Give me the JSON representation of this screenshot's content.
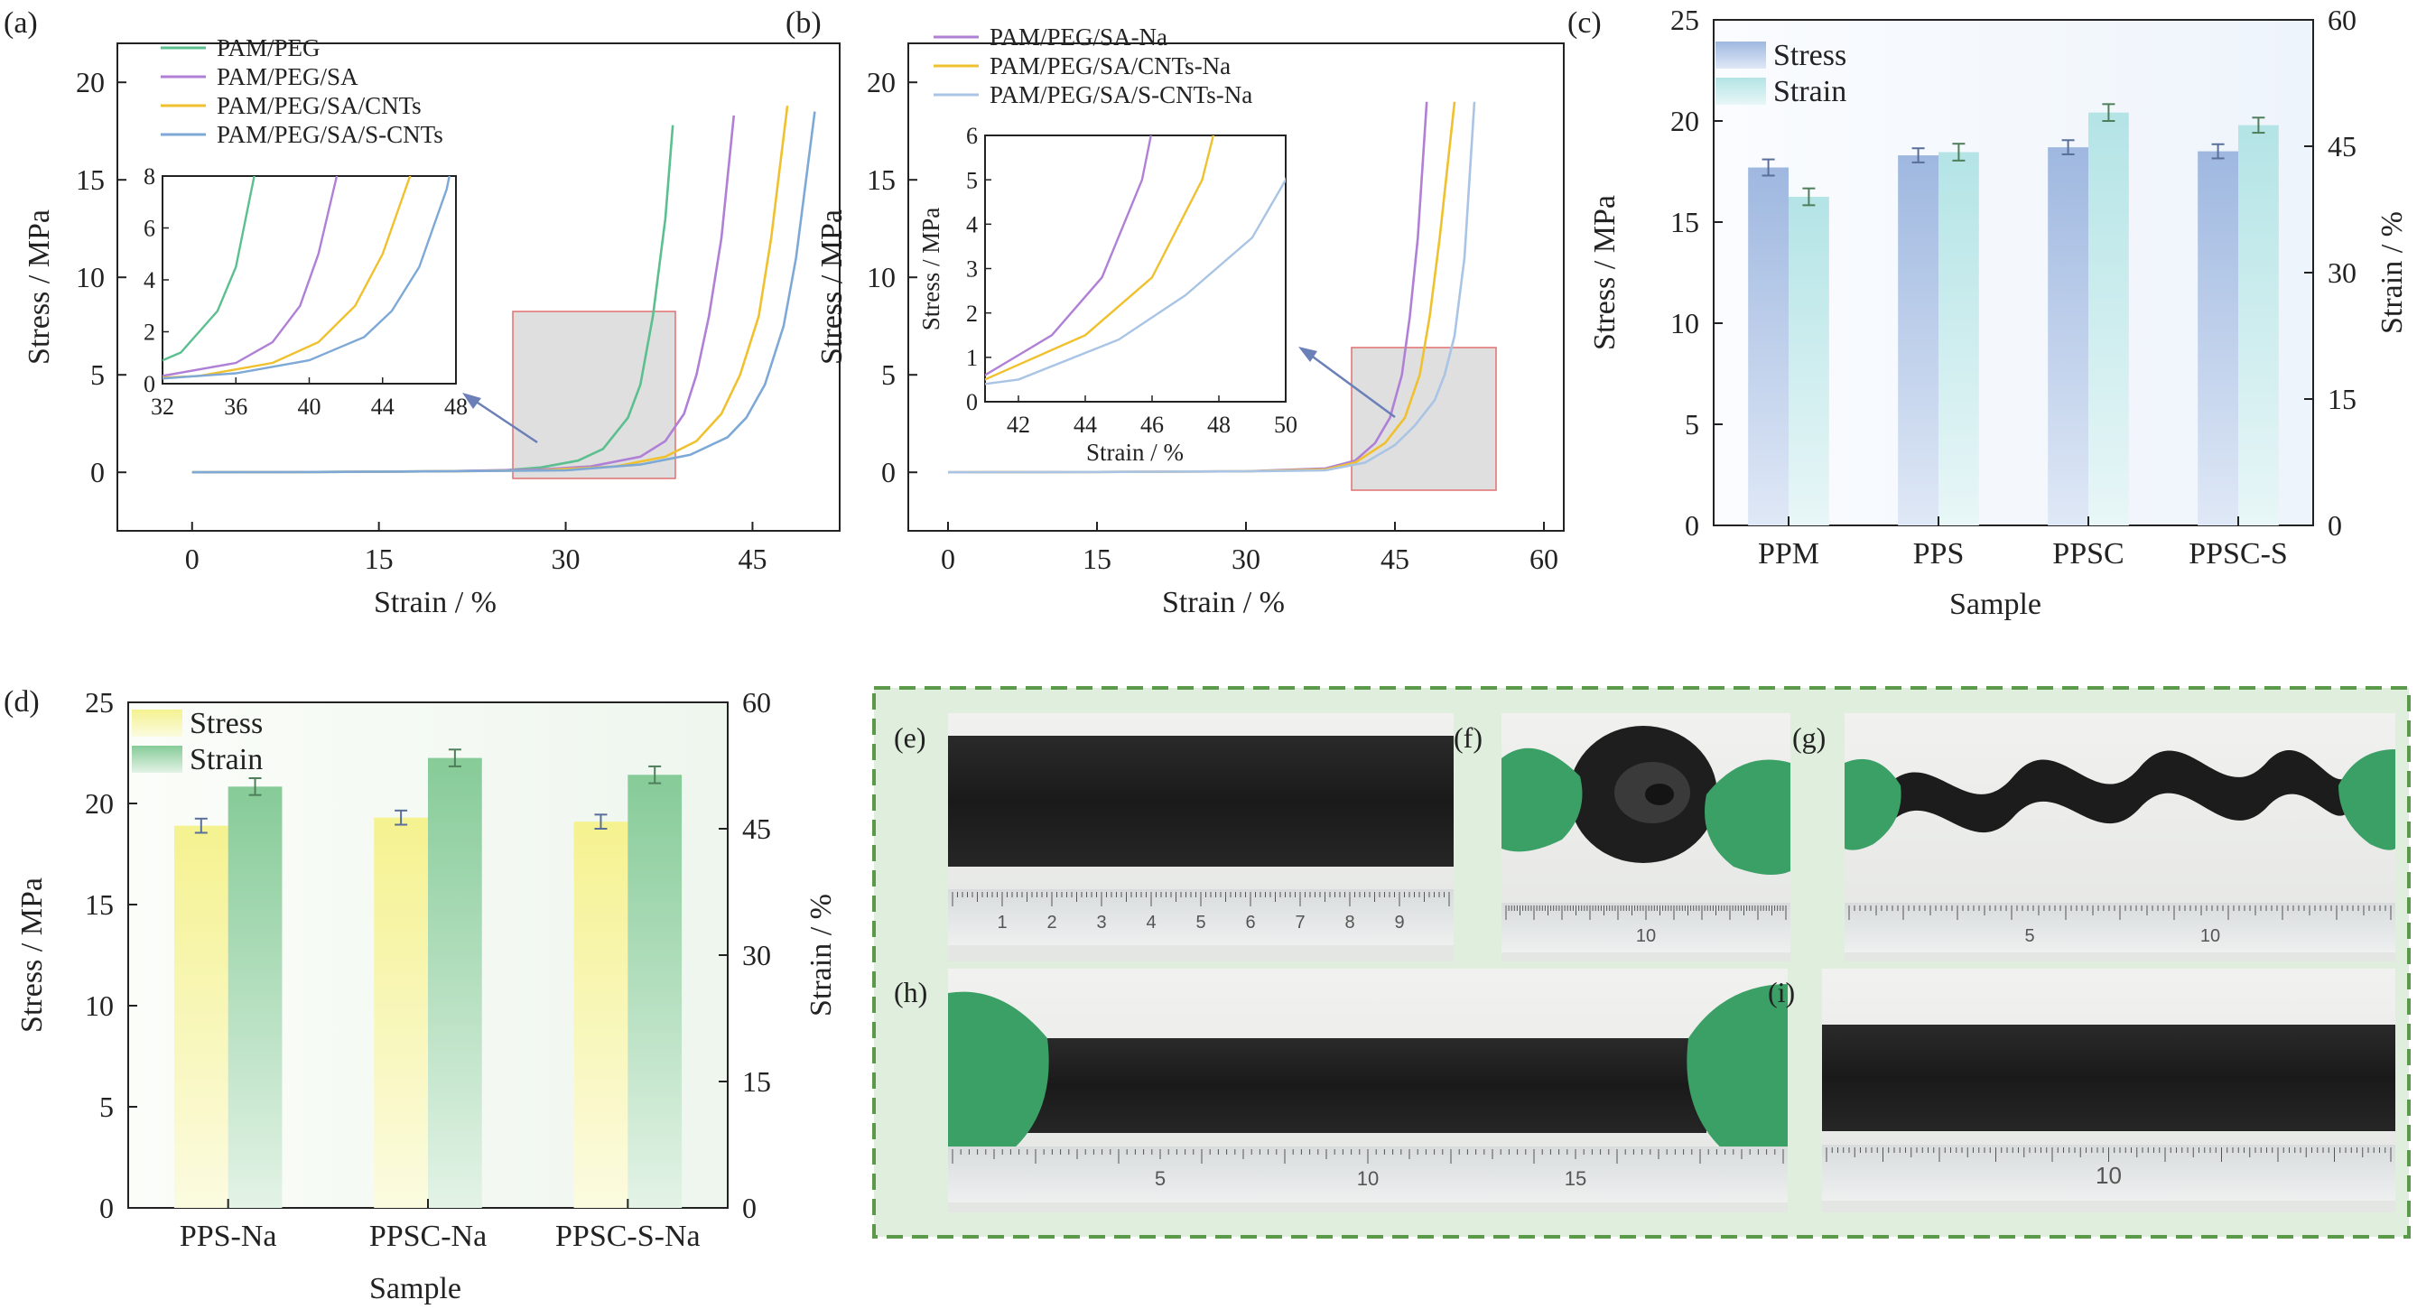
{
  "figure": {
    "panel_labels": [
      "(a)",
      "(b)",
      "(c)",
      "(d)",
      "(e)",
      "(f)",
      "(g)",
      "(h)",
      "(i)"
    ]
  },
  "chart_data": [
    {
      "id": "a",
      "type": "line",
      "xlabel": "Strain / %",
      "ylabel": "Stress / MPa",
      "xlim": [
        -6,
        52
      ],
      "ylim": [
        -3,
        22
      ],
      "xticks": [
        0,
        15,
        30,
        45
      ],
      "yticks": [
        0,
        5,
        10,
        15,
        20
      ],
      "legend": "top-left",
      "series": [
        {
          "name": "PAM/PEG",
          "color": "#5cbf8f",
          "points": [
            [
              0,
              0
            ],
            [
              10,
              0.02
            ],
            [
              20,
              0.05
            ],
            [
              25,
              0.1
            ],
            [
              28,
              0.25
            ],
            [
              31,
              0.6
            ],
            [
              33,
              1.2
            ],
            [
              35,
              2.8
            ],
            [
              36,
              4.5
            ],
            [
              37,
              8
            ],
            [
              38,
              13
            ],
            [
              38.6,
              17.8
            ]
          ]
        },
        {
          "name": "PAM/PEG/SA",
          "color": "#b07fd6",
          "points": [
            [
              0,
              0
            ],
            [
              10,
              0.02
            ],
            [
              20,
              0.05
            ],
            [
              28,
              0.15
            ],
            [
              32,
              0.3
            ],
            [
              36,
              0.8
            ],
            [
              38,
              1.6
            ],
            [
              39.5,
              3
            ],
            [
              40.5,
              5
            ],
            [
              41.5,
              8
            ],
            [
              42.5,
              12
            ],
            [
              43.5,
              18.3
            ]
          ]
        },
        {
          "name": "PAM/PEG/SA/CNTs",
          "color": "#f0c12e",
          "points": [
            [
              0,
              0
            ],
            [
              10,
              0.02
            ],
            [
              20,
              0.05
            ],
            [
              28,
              0.1
            ],
            [
              34,
              0.3
            ],
            [
              38,
              0.8
            ],
            [
              40.5,
              1.6
            ],
            [
              42.5,
              3
            ],
            [
              44,
              5
            ],
            [
              45.5,
              8
            ],
            [
              46.5,
              12
            ],
            [
              47.8,
              18.8
            ]
          ]
        },
        {
          "name": "PAM/PEG/SA/S-CNTs",
          "color": "#7ea9d6",
          "points": [
            [
              0,
              0
            ],
            [
              10,
              0.02
            ],
            [
              20,
              0.05
            ],
            [
              30,
              0.1
            ],
            [
              36,
              0.4
            ],
            [
              40,
              0.9
            ],
            [
              43,
              1.8
            ],
            [
              44.5,
              2.8
            ],
            [
              46,
              4.5
            ],
            [
              47.5,
              7.5
            ],
            [
              48.5,
              11
            ],
            [
              50,
              18.5
            ]
          ]
        }
      ],
      "inset": {
        "xlim": [
          32,
          48
        ],
        "ylim": [
          0,
          8
        ],
        "xticks": [
          32,
          36,
          40,
          44,
          48
        ],
        "yticks": [
          0,
          2,
          4,
          6,
          8
        ]
      }
    },
    {
      "id": "b",
      "type": "line",
      "xlabel": "Strain / %",
      "ylabel": "Stress / MPa",
      "xlim": [
        -4,
        62
      ],
      "ylim": [
        -3,
        22
      ],
      "xticks": [
        0,
        15,
        30,
        45,
        60
      ],
      "yticks": [
        0,
        5,
        10,
        15,
        20
      ],
      "legend": "top-left",
      "series": [
        {
          "name": "PAM/PEG/SA-Na",
          "color": "#b07fd6",
          "points": [
            [
              0,
              0
            ],
            [
              15,
              0.02
            ],
            [
              30,
              0.05
            ],
            [
              38,
              0.2
            ],
            [
              41,
              0.6
            ],
            [
              43,
              1.5
            ],
            [
              44.5,
              2.8
            ],
            [
              45.7,
              5
            ],
            [
              46.5,
              8
            ],
            [
              47.3,
              12
            ],
            [
              48.2,
              19
            ]
          ]
        },
        {
          "name": "PAM/PEG/SA/CNTs-Na",
          "color": "#f0c12e",
          "points": [
            [
              0,
              0
            ],
            [
              15,
              0.02
            ],
            [
              30,
              0.05
            ],
            [
              38,
              0.15
            ],
            [
              41,
              0.5
            ],
            [
              44,
              1.5
            ],
            [
              46,
              2.8
            ],
            [
              47.5,
              5
            ],
            [
              48.5,
              8
            ],
            [
              49.5,
              12
            ],
            [
              51,
              19
            ]
          ]
        },
        {
          "name": "PAM/PEG/SA/S-CNTs-Na",
          "color": "#a9c4e4",
          "points": [
            [
              0,
              0
            ],
            [
              15,
              0.02
            ],
            [
              30,
              0.05
            ],
            [
              38,
              0.1
            ],
            [
              42,
              0.5
            ],
            [
              45,
              1.4
            ],
            [
              47,
              2.4
            ],
            [
              49,
              3.7
            ],
            [
              50,
              5
            ],
            [
              51,
              7
            ],
            [
              52,
              11
            ],
            [
              53,
              19
            ]
          ]
        }
      ],
      "inset": {
        "xlim": [
          41,
          50
        ],
        "ylim": [
          0,
          6
        ],
        "xticks": [
          42,
          44,
          46,
          48,
          50
        ],
        "yticks": [
          0,
          1,
          2,
          3,
          4,
          5,
          6
        ],
        "xlabel": "Strain / %",
        "ylabel": "Stress / MPa"
      }
    },
    {
      "id": "c",
      "type": "bar",
      "xlabel": "Sample",
      "ylabel": "Stress / MPa",
      "y2label": "Strain / %",
      "categories": [
        "PPM",
        "PPS",
        "PPSC",
        "PPSC-S"
      ],
      "ylim": [
        0,
        25
      ],
      "y2lim": [
        0,
        60
      ],
      "yticks": [
        0,
        5,
        10,
        15,
        20,
        25
      ],
      "y2ticks": [
        0,
        15,
        30,
        45,
        60
      ],
      "legend": "top-left",
      "series": [
        {
          "name": "Stress",
          "axis": "left",
          "color": "#a9c1e4",
          "values": [
            17.7,
            18.3,
            18.7,
            18.5
          ],
          "errors": [
            0.4,
            0.35,
            0.35,
            0.35
          ]
        },
        {
          "name": "Strain",
          "axis": "right",
          "color": "#b9e6e8",
          "values": [
            39.0,
            44.3,
            49.0,
            47.5
          ],
          "errors": [
            1.0,
            1.0,
            1.0,
            0.9
          ]
        }
      ]
    },
    {
      "id": "d",
      "type": "bar",
      "xlabel": "Sample",
      "ylabel": "Stress / MPa",
      "y2label": "Strain / %",
      "categories": [
        "PPS-Na",
        "PPSC-Na",
        "PPSC-S-Na"
      ],
      "ylim": [
        0,
        25
      ],
      "y2lim": [
        0,
        60
      ],
      "yticks": [
        0,
        5,
        10,
        15,
        20,
        25
      ],
      "y2ticks": [
        0,
        15,
        30,
        45,
        60
      ],
      "legend": "top-left",
      "series": [
        {
          "name": "Stress",
          "axis": "left",
          "color": "#f6f39a",
          "values": [
            18.9,
            19.3,
            19.1
          ],
          "errors": [
            0.35,
            0.35,
            0.35
          ]
        },
        {
          "name": "Strain",
          "axis": "right",
          "color": "#8fd0a0",
          "values": [
            50.0,
            53.4,
            51.4
          ],
          "errors": [
            1.0,
            1.0,
            1.0
          ]
        }
      ]
    }
  ],
  "photos": [
    {
      "label": "(e)",
      "ruler_numbers": [
        "1",
        "2",
        "3",
        "4",
        "5",
        "6",
        "7",
        "8",
        "9"
      ]
    },
    {
      "label": "(f)",
      "ruler_numbers": [
        "10"
      ]
    },
    {
      "label": "(g)",
      "ruler_numbers": [
        "5",
        "10"
      ]
    },
    {
      "label": "(h)",
      "ruler_numbers": [
        "5",
        "10",
        "15"
      ]
    },
    {
      "label": "(i)",
      "ruler_numbers": [
        "10"
      ]
    }
  ]
}
